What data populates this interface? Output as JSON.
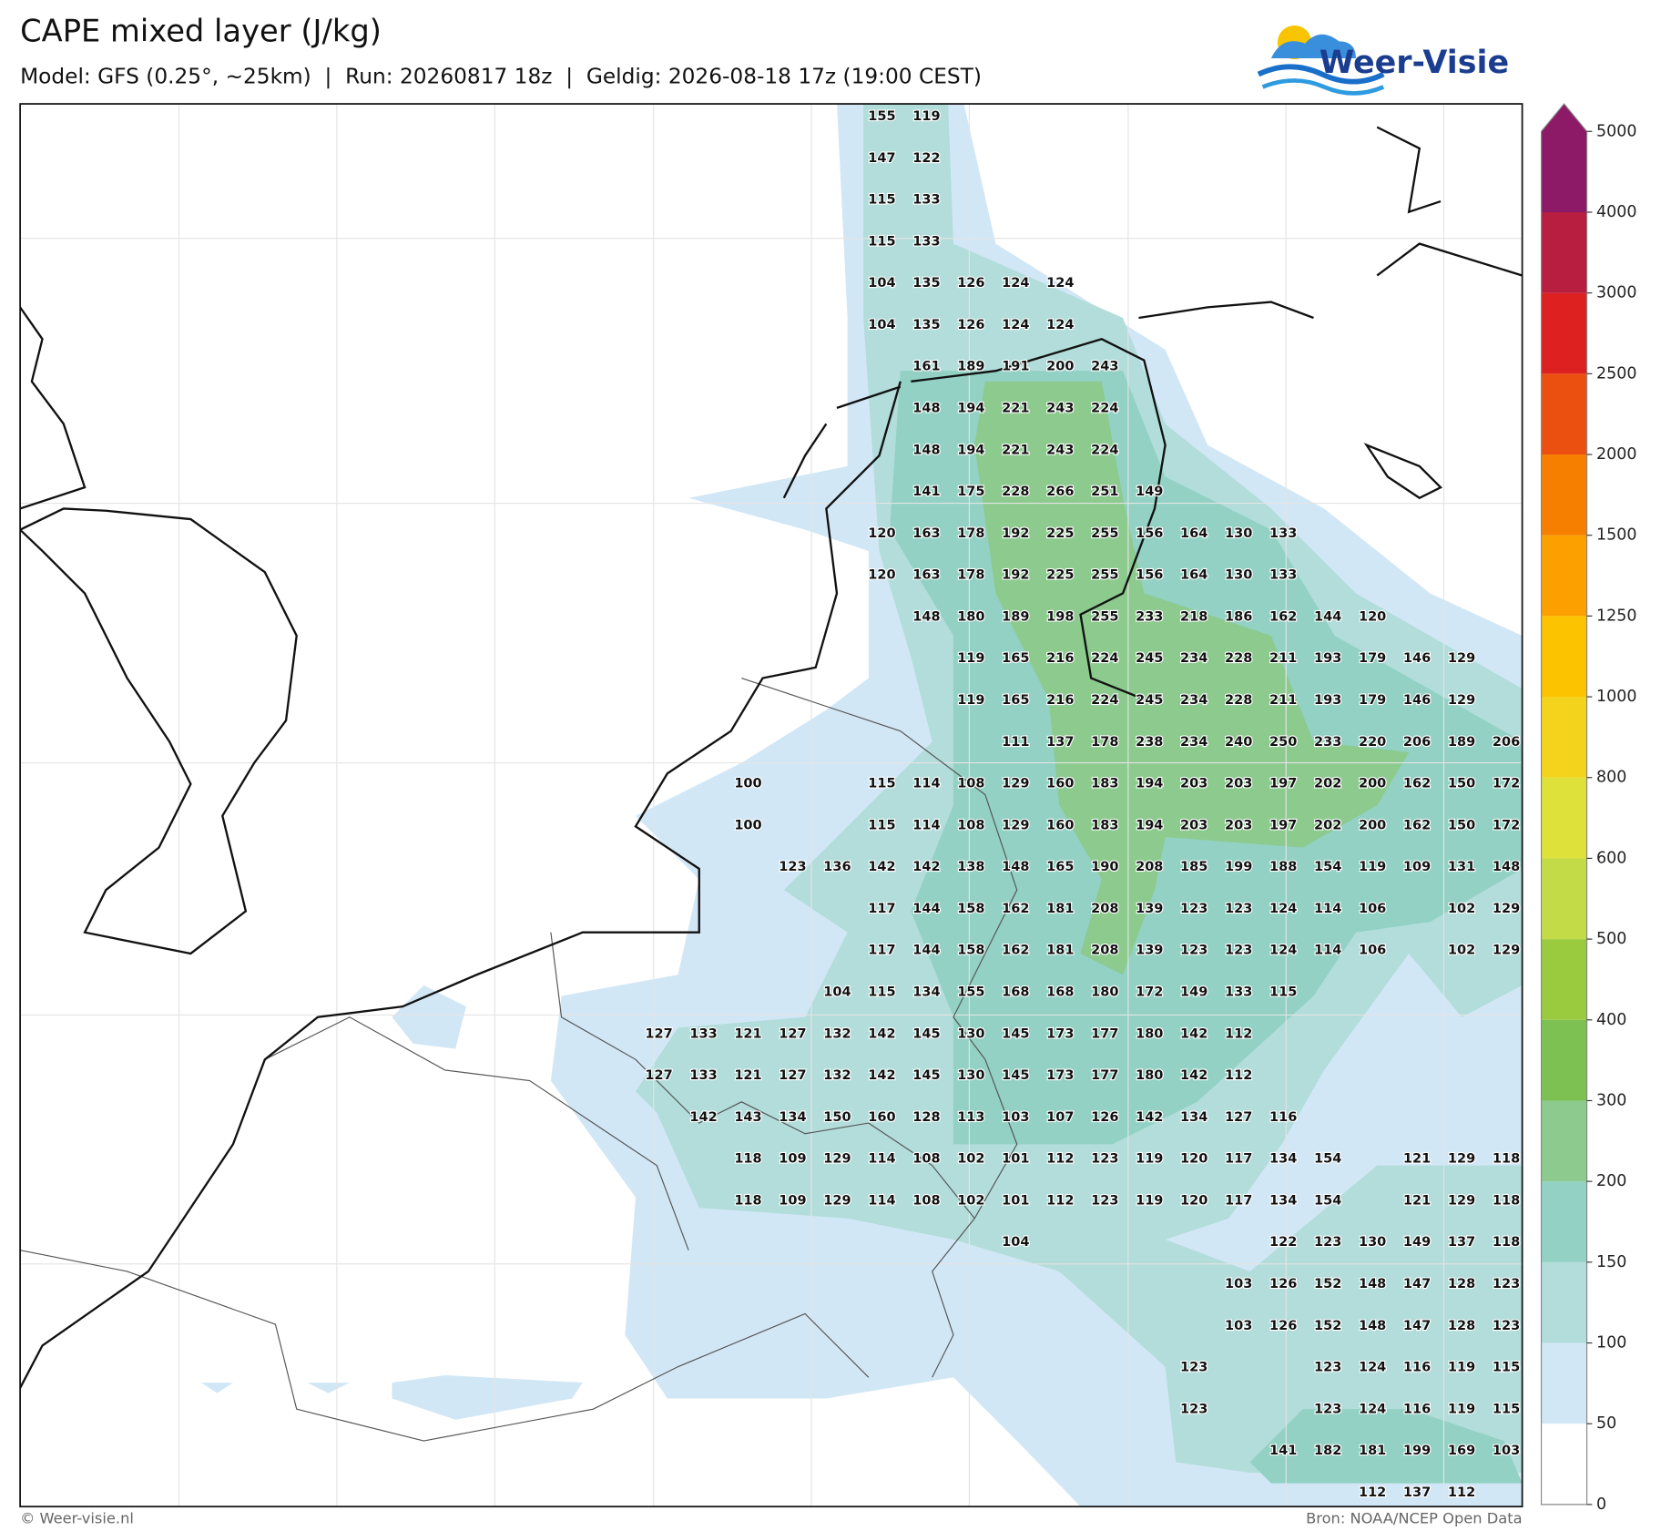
{
  "header": {
    "title": "CAPE mixed layer (J/kg)",
    "subtitle": "Model: GFS (0.25°, ~25km)  |  Run: 20260817 18z  |  Geldig: 2026-08-18 17z (19:00 CEST)"
  },
  "logo": "Weer-Visie",
  "map": {
    "grid_values": [
      [
        null,
        null,
        null,
        null,
        null,
        155,
        119,
        null,
        null,
        null,
        null,
        null,
        null,
        null,
        null,
        null,
        null,
        null,
        null,
        null
      ],
      [
        null,
        null,
        null,
        null,
        null,
        147,
        122,
        null,
        null,
        null,
        null,
        null,
        null,
        null,
        null,
        null,
        null,
        null,
        null,
        null
      ],
      [
        null,
        null,
        null,
        null,
        null,
        115,
        133,
        null,
        null,
        null,
        null,
        null,
        null,
        null,
        null,
        null,
        null,
        null,
        null,
        null
      ],
      [
        null,
        null,
        null,
        null,
        null,
        115,
        133,
        null,
        null,
        null,
        null,
        null,
        null,
        null,
        null,
        null,
        null,
        null,
        null,
        null
      ],
      [
        null,
        null,
        null,
        null,
        null,
        104,
        135,
        126,
        124,
        124,
        null,
        null,
        null,
        null,
        null,
        null,
        null,
        null,
        null,
        null
      ],
      [
        null,
        null,
        null,
        null,
        null,
        104,
        135,
        126,
        124,
        124,
        null,
        null,
        null,
        null,
        null,
        null,
        null,
        null,
        null,
        null
      ],
      [
        null,
        null,
        null,
        null,
        null,
        null,
        161,
        189,
        191,
        200,
        243,
        null,
        null,
        null,
        null,
        null,
        null,
        null,
        null,
        null
      ],
      [
        null,
        null,
        null,
        null,
        null,
        null,
        148,
        194,
        221,
        243,
        224,
        null,
        null,
        null,
        null,
        null,
        null,
        null,
        null,
        null
      ],
      [
        null,
        null,
        null,
        null,
        null,
        null,
        148,
        194,
        221,
        243,
        224,
        null,
        null,
        null,
        null,
        null,
        null,
        null,
        null,
        null
      ],
      [
        null,
        null,
        null,
        null,
        null,
        null,
        141,
        175,
        228,
        266,
        251,
        149,
        null,
        null,
        null,
        null,
        null,
        null,
        null,
        null
      ],
      [
        null,
        null,
        null,
        null,
        null,
        120,
        163,
        178,
        192,
        225,
        255,
        156,
        164,
        130,
        133,
        null,
        null,
        null,
        null,
        null
      ],
      [
        null,
        null,
        null,
        null,
        null,
        120,
        163,
        178,
        192,
        225,
        255,
        156,
        164,
        130,
        133,
        null,
        null,
        null,
        null,
        null
      ],
      [
        null,
        null,
        null,
        null,
        null,
        null,
        148,
        180,
        189,
        198,
        255,
        233,
        218,
        186,
        162,
        144,
        120,
        null,
        null,
        null
      ],
      [
        null,
        null,
        null,
        null,
        null,
        null,
        null,
        119,
        165,
        216,
        224,
        245,
        234,
        228,
        211,
        193,
        179,
        146,
        129,
        null
      ],
      [
        null,
        null,
        null,
        null,
        null,
        null,
        null,
        119,
        165,
        216,
        224,
        245,
        234,
        228,
        211,
        193,
        179,
        146,
        129,
        null
      ],
      [
        null,
        null,
        null,
        null,
        null,
        null,
        null,
        null,
        111,
        137,
        178,
        238,
        234,
        240,
        250,
        233,
        220,
        206,
        189,
        206
      ],
      [
        null,
        null,
        100,
        null,
        null,
        115,
        114,
        108,
        129,
        160,
        183,
        194,
        203,
        203,
        197,
        202,
        200,
        162,
        150,
        172
      ],
      [
        null,
        null,
        100,
        null,
        null,
        115,
        114,
        108,
        129,
        160,
        183,
        194,
        203,
        203,
        197,
        202,
        200,
        162,
        150,
        172
      ],
      [
        null,
        null,
        null,
        123,
        136,
        142,
        142,
        138,
        148,
        165,
        190,
        208,
        185,
        199,
        188,
        154,
        119,
        109,
        131,
        148
      ],
      [
        null,
        null,
        null,
        null,
        null,
        117,
        144,
        158,
        162,
        181,
        208,
        139,
        123,
        123,
        124,
        114,
        106,
        null,
        102,
        129
      ],
      [
        null,
        null,
        null,
        null,
        null,
        117,
        144,
        158,
        162,
        181,
        208,
        139,
        123,
        123,
        124,
        114,
        106,
        null,
        102,
        129
      ],
      [
        null,
        null,
        null,
        null,
        104,
        115,
        134,
        155,
        168,
        168,
        180,
        172,
        149,
        133,
        115,
        null,
        null,
        null,
        null,
        null
      ],
      [
        127,
        133,
        121,
        127,
        132,
        142,
        145,
        130,
        145,
        173,
        177,
        180,
        142,
        112,
        null,
        null,
        null,
        null,
        null,
        null
      ],
      [
        127,
        133,
        121,
        127,
        132,
        142,
        145,
        130,
        145,
        173,
        177,
        180,
        142,
        112,
        null,
        null,
        null,
        null,
        null,
        null
      ],
      [
        null,
        142,
        143,
        134,
        150,
        160,
        128,
        113,
        103,
        107,
        126,
        142,
        134,
        127,
        116,
        null,
        null,
        null,
        null,
        null
      ],
      [
        null,
        null,
        118,
        109,
        129,
        114,
        108,
        102,
        101,
        112,
        123,
        119,
        120,
        117,
        134,
        154,
        null,
        121,
        129,
        118
      ],
      [
        null,
        null,
        118,
        109,
        129,
        114,
        108,
        102,
        101,
        112,
        123,
        119,
        120,
        117,
        134,
        154,
        null,
        121,
        129,
        118
      ],
      [
        null,
        null,
        null,
        null,
        null,
        null,
        null,
        null,
        104,
        null,
        null,
        null,
        null,
        null,
        122,
        123,
        130,
        149,
        137,
        118
      ],
      [
        null,
        null,
        null,
        null,
        null,
        null,
        null,
        null,
        null,
        null,
        null,
        null,
        null,
        103,
        126,
        152,
        148,
        147,
        128,
        123
      ],
      [
        null,
        null,
        null,
        null,
        null,
        null,
        null,
        null,
        null,
        null,
        null,
        null,
        null,
        103,
        126,
        152,
        148,
        147,
        128,
        123
      ],
      [
        null,
        null,
        null,
        null,
        null,
        null,
        null,
        null,
        null,
        null,
        null,
        null,
        123,
        null,
        null,
        123,
        124,
        116,
        119,
        115
      ],
      [
        null,
        null,
        null,
        null,
        null,
        null,
        null,
        null,
        null,
        null,
        null,
        null,
        123,
        null,
        null,
        123,
        124,
        116,
        119,
        115
      ],
      [
        null,
        null,
        null,
        null,
        null,
        null,
        null,
        null,
        null,
        null,
        null,
        null,
        null,
        null,
        141,
        182,
        181,
        199,
        169,
        103
      ],
      [
        null,
        null,
        null,
        null,
        null,
        null,
        null,
        null,
        null,
        null,
        null,
        null,
        null,
        null,
        null,
        null,
        112,
        137,
        112,
        null
      ]
    ]
  },
  "colorbar": {
    "ticks": [
      0,
      50,
      100,
      150,
      200,
      300,
      400,
      500,
      600,
      800,
      1000,
      1250,
      1500,
      2000,
      2500,
      3000,
      4000,
      5000
    ],
    "colors": [
      "#ffffff",
      "#d2e7f6",
      "#b2ddda",
      "#92d1c3",
      "#8cca8e",
      "#7cc152",
      "#9acb3f",
      "#c3db47",
      "#dde13a",
      "#f3d31b",
      "#fcc300",
      "#fca000",
      "#f77f00",
      "#eb5011",
      "#dd2020",
      "#b71e40",
      "#8d1a67"
    ]
  },
  "footer": {
    "left": "© Weer-visie.nl",
    "right": "Bron: NOAA/NCEP Open Data"
  }
}
